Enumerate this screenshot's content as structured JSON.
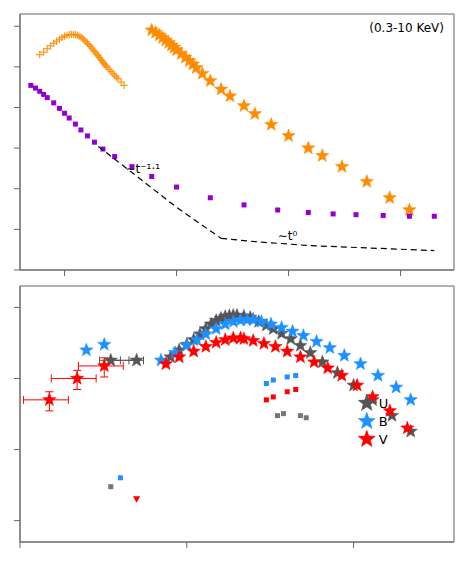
{
  "chart_data": [
    {
      "type": "scatter",
      "log": true,
      "tick_labels": false,
      "xlim": [
        40,
        300000
      ],
      "ylim": [
        1e-16,
        2e-10
      ],
      "xticks": [
        100,
        1000,
        10000,
        100000
      ],
      "yticks": [
        1e-16,
        1e-15,
        1e-14,
        1e-13,
        1e-12,
        1e-11,
        1e-10
      ],
      "series": [
        {
          "type": "scatter",
          "color": "#FF8C00",
          "marker": "plus",
          "x": [
            60,
            65,
            70,
            75,
            80,
            85,
            90,
            95,
            100,
            105,
            110,
            115,
            120,
            125,
            130,
            135,
            140,
            145,
            150,
            155,
            160,
            165,
            170,
            175,
            180,
            185,
            190,
            195,
            200,
            205,
            210,
            215,
            220,
            225,
            230,
            235,
            240,
            250,
            260,
            270,
            280,
            290,
            300,
            320,
            340
          ],
          "values": [
            2e-11,
            2.3e-11,
            2.8e-11,
            3.3e-11,
            3.8e-11,
            4.3e-11,
            4.8e-11,
            5.3e-11,
            5.7e-11,
            6e-11,
            6.2e-11,
            6.3e-11,
            6.3e-11,
            6.2e-11,
            6e-11,
            5.7e-11,
            5.4e-11,
            5e-11,
            4.6e-11,
            4.2e-11,
            3.8e-11,
            3.5e-11,
            3.2e-11,
            2.9e-11,
            2.6e-11,
            2.4e-11,
            2.2e-11,
            2e-11,
            1.85e-11,
            1.7e-11,
            1.55e-11,
            1.42e-11,
            1.3e-11,
            1.2e-11,
            1.12e-11,
            1.05e-11,
            9.8e-12,
            8.7e-12,
            7.7e-12,
            6.9e-12,
            6.2e-12,
            5.6e-12,
            5.1e-12,
            4.2e-12,
            3.5e-12
          ]
        },
        {
          "type": "scatter",
          "color": "#FF8C00",
          "marker": "star",
          "x": [
            600,
            650,
            700,
            750,
            800,
            850,
            900,
            950,
            1000,
            1100,
            1200,
            1300,
            1400,
            1500,
            1700,
            2000,
            2500,
            3000,
            4000,
            5000,
            7000,
            10000,
            15000,
            20000,
            30000,
            50000,
            80000,
            120000
          ],
          "values": [
            8e-11,
            7e-11,
            6e-11,
            5.2e-11,
            4.5e-11,
            3.9e-11,
            3.4e-11,
            3e-11,
            2.6e-11,
            2.1e-11,
            1.7e-11,
            1.4e-11,
            1.15e-11,
            9.5e-12,
            6.8e-12,
            4.5e-12,
            2.8e-12,
            1.9e-12,
            1.1e-12,
            7e-13,
            3.8e-13,
            2e-13,
            1e-13,
            6.5e-14,
            3.5e-14,
            1.5e-14,
            6e-15,
            3e-15
          ]
        },
        {
          "type": "scatter",
          "color": "#9400D3",
          "marker": "square",
          "x": [
            50,
            55,
            60,
            65,
            70,
            80,
            90,
            100,
            110,
            125,
            140,
            160,
            185,
            220,
            280,
            400,
            600,
            1000,
            2000,
            4000,
            8000,
            15000,
            25000,
            40000,
            70000,
            120000,
            200000
          ],
          "values": [
            3.5e-12,
            3e-12,
            2.5e-12,
            2.1e-12,
            1.75e-12,
            1.3e-12,
            9.5e-13,
            7.2e-13,
            5.5e-13,
            3.9e-13,
            2.8e-13,
            2e-13,
            1.4e-13,
            9.5e-14,
            6.2e-14,
            3.5e-14,
            2e-14,
            1.1e-14,
            6e-15,
            4e-15,
            3e-15,
            2.6e-15,
            2.4e-15,
            2.3e-15,
            2.2e-15,
            2.1e-15,
            2.1e-15
          ]
        },
        {
          "type": "line",
          "color": "#000000",
          "line_style": "dashed",
          "x": [
            200,
            400,
            1000,
            2500
          ],
          "values": [
            1.1e-13,
            2.5e-14,
            3.5e-15,
            6e-16
          ]
        },
        {
          "type": "line",
          "color": "#000000",
          "line_style": "dashed",
          "x": [
            2500,
            5000,
            15000,
            50000,
            200000
          ],
          "values": [
            6e-16,
            5e-16,
            4e-16,
            3.5e-16,
            3e-16
          ]
        }
      ],
      "annotations": [
        {
          "text": "∼t⁻¹·¹",
          "x": 350,
          "y": 2.5e-14
        },
        {
          "text": "∼t⁰",
          "x": 8000,
          "y": 5.5e-16
        },
        {
          "text": "(0.3-10 KeV)"
        }
      ]
    },
    {
      "type": "scatter",
      "log": true,
      "tick_labels": false,
      "xlim": [
        1000,
        400000
      ],
      "ylim": [
        5e-17,
        2e-13
      ],
      "xticks": [
        1000,
        10000,
        100000
      ],
      "yticks": [
        1e-16,
        1e-15,
        1e-14,
        1e-13
      ],
      "series": [
        {
          "type": "line",
          "color": "#555555",
          "marker": "star",
          "line_style": "solid",
          "x": [
            3500,
            5000
          ],
          "values": [
            1.8e-14,
            1.8e-14
          ],
          "xerr": [
            500,
            500
          ]
        },
        {
          "type": "scatter",
          "color": "#555555",
          "marker": "star",
          "x": [
            8000,
            9000,
            10000,
            11000,
            12000,
            13000,
            14000,
            15000,
            16000,
            17000,
            18000,
            19000,
            20000,
            22000,
            24000
          ],
          "values": [
            2e-14,
            2.5e-14,
            3e-14,
            3.5e-14,
            4.2e-14,
            5e-14,
            5.8e-14,
            6.5e-14,
            7e-14,
            7.4e-14,
            7.6e-14,
            7.7e-14,
            7.7e-14,
            7.5e-14,
            7.2e-14
          ]
        },
        {
          "type": "scatter",
          "color": "#555555",
          "marker": "star",
          "x": [
            25000,
            27000,
            30000,
            33000,
            37000,
            42000,
            48000,
            55000,
            65000,
            80000,
            100000,
            130000,
            170000,
            220000
          ],
          "values": [
            6.8e-14,
            6.3e-14,
            5.6e-14,
            5e-14,
            4.3e-14,
            3.6e-14,
            2.9e-14,
            2.3e-14,
            1.7e-14,
            1.2e-14,
            8e-15,
            5e-15,
            3e-15,
            1.8e-15
          ]
        },
        {
          "type": "scatter",
          "color": "#1E90FF",
          "marker": "star",
          "x": [
            2500,
            3200
          ],
          "values": [
            2.5e-14,
            3e-14
          ]
        },
        {
          "type": "scatter",
          "color": "#1E90FF",
          "marker": "star",
          "x": [
            7000,
            8500,
            10000,
            11500,
            13000,
            15000,
            17000,
            19000,
            21000,
            23000
          ],
          "values": [
            1.8e-14,
            2.3e-14,
            2.9e-14,
            3.5e-14,
            4.2e-14,
            5e-14,
            5.8e-14,
            6.3e-14,
            6.6e-14,
            6.7e-14
          ]
        },
        {
          "type": "scatter",
          "color": "#1E90FF",
          "marker": "star",
          "x": [
            25000,
            28000,
            32000,
            37000,
            43000,
            50000,
            60000,
            72000,
            88000,
            110000,
            140000,
            180000,
            220000
          ],
          "values": [
            6.7e-14,
            6.3e-14,
            5.8e-14,
            5.2e-14,
            4.6e-14,
            4e-14,
            3.3e-14,
            2.7e-14,
            2.1e-14,
            1.6e-14,
            1.1e-14,
            7.5e-15,
            5e-15
          ]
        },
        {
          "type": "scatter",
          "color": "#FF0000",
          "marker": "star",
          "x": [
            1500,
            2200,
            3200
          ],
          "values": [
            5e-15,
            1e-14,
            1.5e-14
          ],
          "xerr": [
            450,
            660,
            960
          ],
          "yerr": [
            1.5e-15,
            3e-15,
            4.5e-15
          ]
        },
        {
          "type": "scatter",
          "color": "#FF0000",
          "marker": "star",
          "x": [
            7500,
            9000,
            11000,
            13000,
            15000,
            17000,
            19000,
            21000
          ],
          "values": [
            1.6e-14,
            2e-14,
            2.4e-14,
            2.8e-14,
            3.2e-14,
            3.5e-14,
            3.7e-14,
            3.7e-14
          ]
        },
        {
          "type": "scatter",
          "color": "#FF0000",
          "marker": "star",
          "x": [
            22000,
            25000,
            29000,
            34000,
            40000,
            48000,
            58000,
            70000,
            85000,
            105000,
            130000,
            165000,
            210000
          ],
          "values": [
            3.6e-14,
            3.4e-14,
            3.1e-14,
            2.8e-14,
            2.4e-14,
            2e-14,
            1.7e-14,
            1.4e-14,
            1.1e-14,
            8e-15,
            5.5e-15,
            3.5e-15,
            2e-15
          ]
        },
        {
          "type": "scatter",
          "color": "#1E90FF",
          "marker": "square",
          "x": [
            30000,
            33000,
            40000,
            45000
          ],
          "values": [
            8.5e-15,
            9.5e-15,
            1.05e-14,
            1.1e-14
          ]
        },
        {
          "type": "scatter",
          "color": "#FF0000",
          "marker": "square",
          "x": [
            30000,
            33000,
            40000,
            45000
          ],
          "values": [
            5e-15,
            5.5e-15,
            6.5e-15,
            7e-15
          ]
        },
        {
          "type": "scatter",
          "color": "#777777",
          "marker": "square",
          "x": [
            35000,
            38000,
            48000,
            52000
          ],
          "values": [
            3e-15,
            3.2e-15,
            3e-15,
            2.8e-15
          ]
        },
        {
          "type": "scatter",
          "color": "#1E90FF",
          "marker": "square",
          "x": [
            4000
          ],
          "values": [
            4e-16
          ]
        },
        {
          "type": "scatter",
          "color": "#777777",
          "marker": "square",
          "x": [
            3500
          ],
          "values": [
            3e-16
          ]
        },
        {
          "type": "scatter",
          "color": "#FF0000",
          "marker": "triangle-down",
          "x": [
            5000
          ],
          "values": [
            2e-16
          ]
        }
      ],
      "annotations": [
        {
          "text": "U",
          "x": 120000,
          "y": 4.5e-15,
          "marker": "star",
          "color": "#555555"
        },
        {
          "text": "B",
          "x": 120000,
          "y": 2.5e-15,
          "marker": "star",
          "color": "#1E90FF"
        },
        {
          "text": "V",
          "x": 120000,
          "y": 1.4e-15,
          "marker": "star",
          "color": "#FF0000"
        }
      ]
    }
  ]
}
